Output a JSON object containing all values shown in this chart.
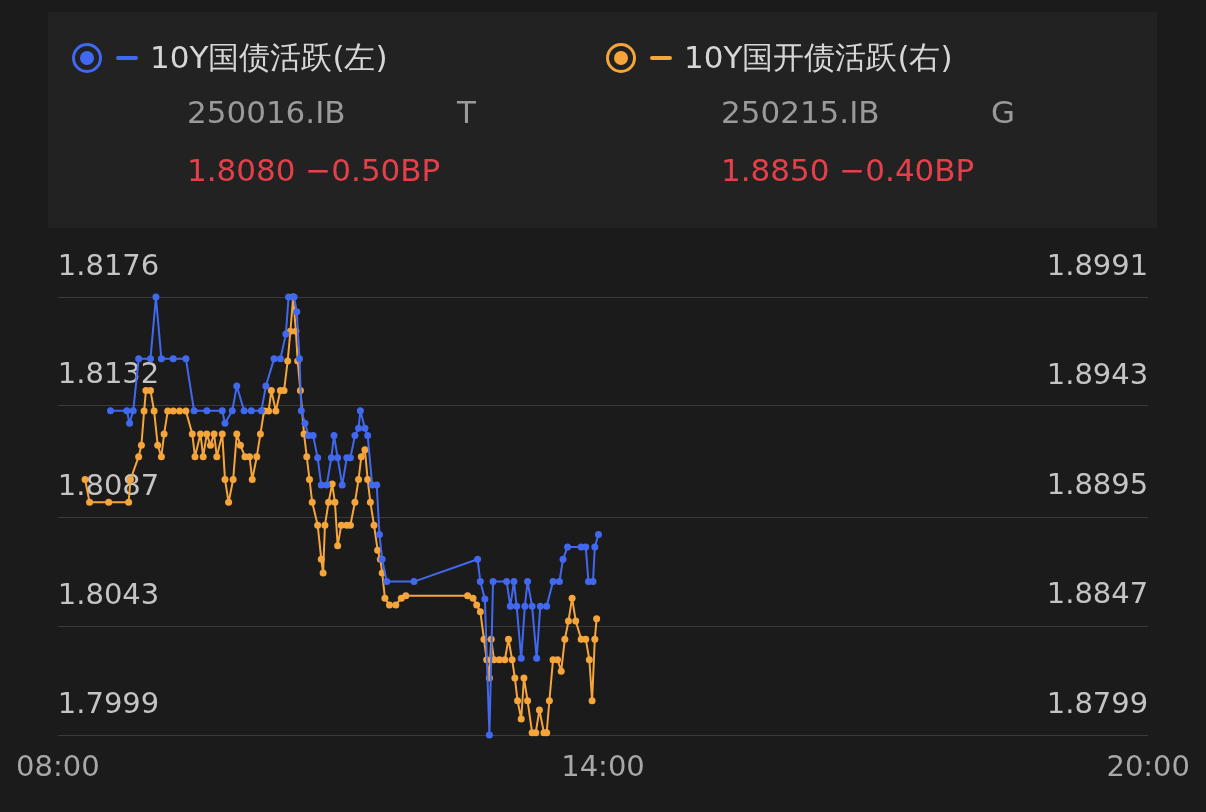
{
  "chart_data": {
    "type": "line",
    "legend": "top",
    "marker": "circle",
    "line_style": "solid",
    "grid": "y",
    "xlim": [
      8,
      20
    ],
    "xticks": [
      {
        "value": 8,
        "label": "08:00"
      },
      {
        "value": 14,
        "label": "14:00"
      },
      {
        "value": 20,
        "label": "20:00"
      }
    ],
    "ylim": [
      1.7999,
      1.8176
    ],
    "yticks": [
      1.7999,
      1.8043,
      1.8087,
      1.8132,
      1.8176
    ],
    "y2lim": [
      1.8799,
      1.8991
    ],
    "y2ticks": [
      1.8799,
      1.8847,
      1.8895,
      1.8943,
      1.8991
    ],
    "annotations": [
      "250016.IB",
      "T",
      "1.8080  −0.50BP",
      "250215.IB",
      "G",
      "1.8850  −0.40BP"
    ],
    "series": [
      {
        "name": "10Y国债活跃(左)",
        "color": "#4169f0",
        "x": [
          8.58,
          8.76,
          8.79,
          8.83,
          8.89,
          9.02,
          9.08,
          9.14,
          9.27,
          9.41,
          9.5,
          9.64,
          9.81,
          9.84,
          9.92,
          9.97,
          10.05,
          10.13,
          10.24,
          10.29,
          10.38,
          10.45,
          10.51,
          10.54,
          10.6,
          10.63,
          10.66,
          10.68,
          10.72,
          10.76,
          10.81,
          10.86,
          10.9,
          10.96,
          11.01,
          11.04,
          11.08,
          11.13,
          11.18,
          11.22,
          11.27,
          11.31,
          11.33,
          11.38,
          11.41,
          11.46,
          11.51,
          11.54,
          11.57,
          11.62,
          11.92,
          12.62,
          12.65,
          12.7,
          12.75,
          12.79,
          12.94,
          12.98,
          13.02,
          13.05,
          13.1,
          13.14,
          13.17,
          13.22,
          13.27,
          13.31,
          13.38,
          13.45,
          13.52,
          13.56,
          13.61,
          13.76,
          13.81,
          13.84,
          13.89,
          13.91,
          13.95
        ],
        "values": [
          1.813,
          1.813,
          1.8125,
          1.813,
          1.8151,
          1.8151,
          1.8176,
          1.8151,
          1.8151,
          1.8151,
          1.813,
          1.813,
          1.813,
          1.8125,
          1.813,
          1.814,
          1.813,
          1.813,
          1.813,
          1.814,
          1.8151,
          1.8151,
          1.8161,
          1.8176,
          1.8176,
          1.817,
          1.8151,
          1.813,
          1.8125,
          1.812,
          1.812,
          1.8111,
          1.81,
          1.81,
          1.8111,
          1.812,
          1.8111,
          1.81,
          1.8111,
          1.8111,
          1.812,
          1.8123,
          1.813,
          1.8123,
          1.812,
          1.81,
          1.81,
          1.808,
          1.807,
          1.8061,
          1.8061,
          1.807,
          1.8061,
          1.8054,
          1.7999,
          1.8061,
          1.8061,
          1.8051,
          1.8061,
          1.8051,
          1.803,
          1.8051,
          1.8061,
          1.8051,
          1.803,
          1.8051,
          1.8051,
          1.8061,
          1.8061,
          1.807,
          1.8075,
          1.8075,
          1.8075,
          1.8061,
          1.8061,
          1.8075,
          1.808
        ]
      },
      {
        "name": "10Y国开债活跃(右)",
        "color": "#f5a53a",
        "axis": "y2",
        "x": [
          8.3,
          8.35,
          8.56,
          8.78,
          8.8,
          8.89,
          8.92,
          8.95,
          8.97,
          9.02,
          9.06,
          9.1,
          9.14,
          9.17,
          9.21,
          9.27,
          9.34,
          9.41,
          9.48,
          9.51,
          9.57,
          9.6,
          9.64,
          9.68,
          9.72,
          9.75,
          9.81,
          9.84,
          9.88,
          9.93,
          9.97,
          10.01,
          10.06,
          10.11,
          10.14,
          10.19,
          10.23,
          10.27,
          10.32,
          10.35,
          10.4,
          10.45,
          10.49,
          10.53,
          10.56,
          10.59,
          10.62,
          10.64,
          10.67,
          10.71,
          10.74,
          10.77,
          10.8,
          10.86,
          10.9,
          10.92,
          10.94,
          10.98,
          11.02,
          11.05,
          11.08,
          11.12,
          11.18,
          11.22,
          11.27,
          11.31,
          11.34,
          11.38,
          11.41,
          11.44,
          11.48,
          11.52,
          11.55,
          11.57,
          11.6,
          11.65,
          11.72,
          11.78,
          11.83,
          12.51,
          12.57,
          12.61,
          12.65,
          12.69,
          12.72,
          12.75,
          12.77,
          12.8,
          12.86,
          12.92,
          12.96,
          13.0,
          13.03,
          13.06,
          13.1,
          13.13,
          13.17,
          13.22,
          13.26,
          13.3,
          13.35,
          13.38,
          13.41,
          13.45,
          13.5,
          13.54,
          13.58,
          13.62,
          13.66,
          13.7,
          13.76,
          13.81,
          13.85,
          13.88,
          13.91,
          13.93
        ],
        "values": [
          1.8911,
          1.8901,
          1.8901,
          1.8901,
          1.8911,
          1.8921,
          1.8926,
          1.8941,
          1.895,
          1.895,
          1.8941,
          1.8926,
          1.8921,
          1.8931,
          1.8941,
          1.8941,
          1.8941,
          1.8941,
          1.8931,
          1.8921,
          1.8931,
          1.8921,
          1.8931,
          1.8926,
          1.8931,
          1.8921,
          1.8931,
          1.8911,
          1.8901,
          1.8911,
          1.8931,
          1.8926,
          1.8921,
          1.8921,
          1.8911,
          1.8921,
          1.8931,
          1.8941,
          1.8941,
          1.895,
          1.8941,
          1.895,
          1.895,
          1.8963,
          1.8976,
          1.8991,
          1.8976,
          1.8963,
          1.895,
          1.8931,
          1.8921,
          1.8911,
          1.8901,
          1.8891,
          1.8876,
          1.887,
          1.8891,
          1.8901,
          1.8909,
          1.8901,
          1.8882,
          1.8891,
          1.8891,
          1.8891,
          1.8901,
          1.8911,
          1.8921,
          1.8924,
          1.8911,
          1.8901,
          1.8891,
          1.888,
          1.8876,
          1.887,
          1.8859,
          1.8856,
          1.8856,
          1.8859,
          1.886,
          1.886,
          1.8859,
          1.8856,
          1.8853,
          1.8841,
          1.8832,
          1.8824,
          1.8841,
          1.8832,
          1.8832,
          1.8832,
          1.8841,
          1.8832,
          1.8824,
          1.8814,
          1.8806,
          1.8824,
          1.8814,
          1.88,
          1.88,
          1.881,
          1.88,
          1.88,
          1.8814,
          1.8832,
          1.8832,
          1.8827,
          1.8841,
          1.8849,
          1.8859,
          1.8849,
          1.8841,
          1.8841,
          1.8832,
          1.8814,
          1.8841,
          1.885
        ]
      }
    ]
  }
}
